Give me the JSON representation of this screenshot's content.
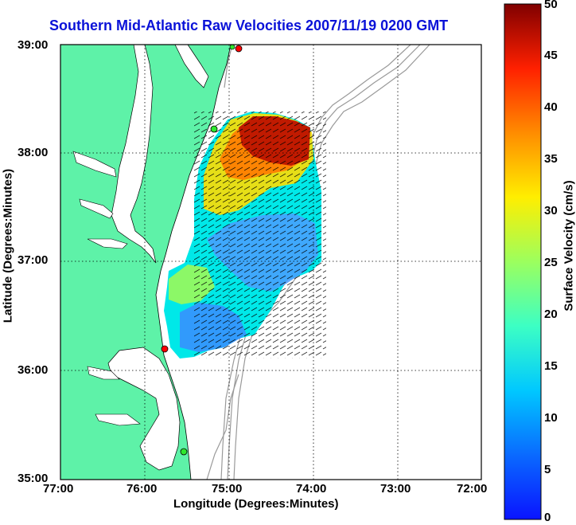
{
  "title": "Southern Mid-Atlantic Raw Velocities 2007/11/19 0200 GMT",
  "xlabel": "Longitude (Degrees:Minutes)",
  "ylabel": "Latitude (Degrees:Minutes)",
  "colorbar": {
    "label": "Surface Velocity (cm/s)",
    "ticks": [
      "0",
      "5",
      "10",
      "15",
      "20",
      "25",
      "30",
      "35",
      "40",
      "45",
      "50"
    ],
    "min": 0,
    "max": 50
  },
  "axes": {
    "x_ticks": [
      "77:00",
      "76:00",
      "75:00",
      "74:00",
      "73:00",
      "72:00"
    ],
    "y_ticks": [
      "39:00",
      "38:00",
      "37:00",
      "36:00",
      "35:00"
    ],
    "xlim": [
      -77,
      -72
    ],
    "ylim": [
      35,
      39
    ],
    "grid": true
  },
  "colors": {
    "land": "#5ef2a8",
    "title": "#0a12d8",
    "bathymetry": "#9a9a9a",
    "stations": "#ff0000"
  }
}
